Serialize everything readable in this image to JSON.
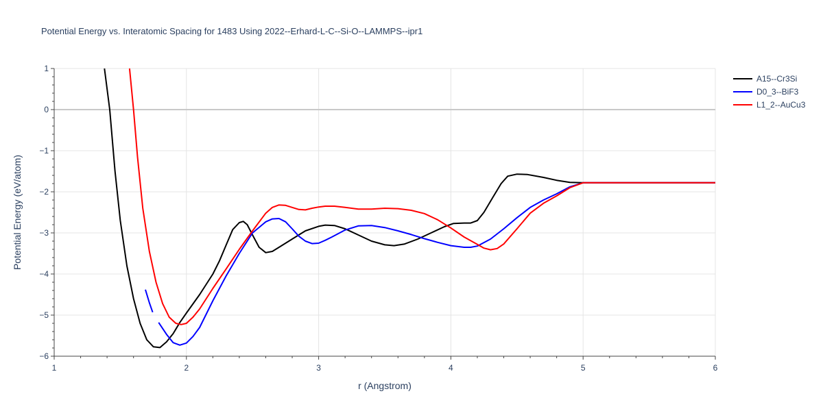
{
  "chart_data": {
    "type": "line",
    "title": "Potential Energy vs. Interatomic Spacing for 1483 Using 2022--Erhard-L-C--Si-O--LAMMPS--ipr1",
    "xlabel": "r (Angstrom)",
    "ylabel": "Potential Energy (eV/atom)",
    "xlim": [
      1,
      6
    ],
    "ylim": [
      -6,
      1
    ],
    "xticks": [
      1,
      2,
      3,
      4,
      5,
      6
    ],
    "yticks": [
      -6,
      -5,
      -4,
      -3,
      -2,
      -1,
      0,
      1
    ],
    "ytick_labels": [
      "−6",
      "−5",
      "−4",
      "−3",
      "−2",
      "−1",
      "0",
      "1"
    ],
    "grid": true,
    "legend_position": "top-right",
    "series": [
      {
        "name": "A15--Cr3Si",
        "color": "#000000",
        "segments": [
          [
            [
              1.38,
              1.0
            ],
            [
              1.42,
              0.0
            ],
            [
              1.46,
              -1.5
            ],
            [
              1.5,
              -2.7
            ],
            [
              1.55,
              -3.8
            ],
            [
              1.6,
              -4.6
            ],
            [
              1.65,
              -5.2
            ],
            [
              1.7,
              -5.6
            ],
            [
              1.75,
              -5.77
            ],
            [
              1.8,
              -5.79
            ],
            [
              1.85,
              -5.65
            ],
            [
              1.9,
              -5.45
            ],
            [
              1.95,
              -5.18
            ],
            [
              2.0,
              -4.95
            ],
            [
              2.1,
              -4.5
            ],
            [
              2.2,
              -4.0
            ],
            [
              2.25,
              -3.68
            ],
            [
              2.3,
              -3.3
            ],
            [
              2.35,
              -2.92
            ],
            [
              2.4,
              -2.75
            ],
            [
              2.43,
              -2.72
            ],
            [
              2.46,
              -2.8
            ],
            [
              2.5,
              -3.05
            ],
            [
              2.55,
              -3.35
            ],
            [
              2.6,
              -3.48
            ],
            [
              2.65,
              -3.45
            ],
            [
              2.7,
              -3.35
            ],
            [
              2.8,
              -3.15
            ],
            [
              2.9,
              -2.95
            ],
            [
              3.0,
              -2.84
            ],
            [
              3.05,
              -2.81
            ],
            [
              3.12,
              -2.82
            ],
            [
              3.2,
              -2.9
            ],
            [
              3.3,
              -3.05
            ],
            [
              3.4,
              -3.2
            ],
            [
              3.5,
              -3.29
            ],
            [
              3.57,
              -3.31
            ],
            [
              3.65,
              -3.27
            ],
            [
              3.75,
              -3.15
            ],
            [
              3.85,
              -3.0
            ],
            [
              3.95,
              -2.85
            ],
            [
              4.02,
              -2.77
            ],
            [
              4.1,
              -2.76
            ],
            [
              4.15,
              -2.76
            ],
            [
              4.2,
              -2.7
            ],
            [
              4.25,
              -2.5
            ],
            [
              4.32,
              -2.12
            ],
            [
              4.38,
              -1.8
            ],
            [
              4.43,
              -1.62
            ],
            [
              4.5,
              -1.57
            ],
            [
              4.58,
              -1.58
            ],
            [
              4.7,
              -1.65
            ],
            [
              4.8,
              -1.72
            ],
            [
              4.9,
              -1.77
            ],
            [
              5.0,
              -1.78
            ],
            [
              6.0,
              -1.78
            ]
          ]
        ]
      },
      {
        "name": "D0_3--BiF3",
        "color": "#0000ff",
        "segments": [
          [
            [
              1.69,
              -4.38
            ],
            [
              1.72,
              -4.7
            ],
            [
              1.745,
              -4.93
            ]
          ],
          [
            [
              1.79,
              -5.18
            ],
            [
              1.85,
              -5.47
            ],
            [
              1.9,
              -5.67
            ],
            [
              1.95,
              -5.73
            ],
            [
              2.0,
              -5.68
            ],
            [
              2.05,
              -5.52
            ],
            [
              2.1,
              -5.3
            ],
            [
              2.2,
              -4.65
            ],
            [
              2.3,
              -4.05
            ],
            [
              2.4,
              -3.5
            ],
            [
              2.5,
              -3.0
            ],
            [
              2.6,
              -2.73
            ],
            [
              2.65,
              -2.66
            ],
            [
              2.7,
              -2.65
            ],
            [
              2.75,
              -2.73
            ],
            [
              2.8,
              -2.9
            ],
            [
              2.85,
              -3.08
            ],
            [
              2.9,
              -3.2
            ],
            [
              2.95,
              -3.26
            ],
            [
              3.0,
              -3.25
            ],
            [
              3.05,
              -3.18
            ],
            [
              3.1,
              -3.1
            ],
            [
              3.2,
              -2.93
            ],
            [
              3.3,
              -2.83
            ],
            [
              3.4,
              -2.82
            ],
            [
              3.5,
              -2.87
            ],
            [
              3.6,
              -2.95
            ],
            [
              3.7,
              -3.04
            ],
            [
              3.8,
              -3.14
            ],
            [
              3.9,
              -3.23
            ],
            [
              4.0,
              -3.31
            ],
            [
              4.1,
              -3.35
            ],
            [
              4.15,
              -3.35
            ],
            [
              4.2,
              -3.32
            ],
            [
              4.3,
              -3.15
            ],
            [
              4.4,
              -2.9
            ],
            [
              4.5,
              -2.63
            ],
            [
              4.6,
              -2.38
            ],
            [
              4.7,
              -2.2
            ],
            [
              4.8,
              -2.05
            ],
            [
              4.9,
              -1.88
            ],
            [
              5.0,
              -1.78
            ],
            [
              6.0,
              -1.78
            ]
          ]
        ]
      },
      {
        "name": "L1_2--AuCu3",
        "color": "#ff0000",
        "segments": [
          [
            [
              1.57,
              1.0
            ],
            [
              1.6,
              0.0
            ],
            [
              1.63,
              -1.15
            ],
            [
              1.67,
              -2.4
            ],
            [
              1.72,
              -3.45
            ],
            [
              1.77,
              -4.2
            ],
            [
              1.82,
              -4.72
            ],
            [
              1.87,
              -5.05
            ],
            [
              1.92,
              -5.2
            ],
            [
              1.96,
              -5.23
            ],
            [
              2.0,
              -5.2
            ],
            [
              2.05,
              -5.05
            ],
            [
              2.1,
              -4.85
            ],
            [
              2.2,
              -4.35
            ],
            [
              2.3,
              -3.88
            ],
            [
              2.4,
              -3.4
            ],
            [
              2.5,
              -2.95
            ],
            [
              2.6,
              -2.52
            ],
            [
              2.65,
              -2.38
            ],
            [
              2.7,
              -2.32
            ],
            [
              2.75,
              -2.33
            ],
            [
              2.8,
              -2.38
            ],
            [
              2.85,
              -2.43
            ],
            [
              2.9,
              -2.44
            ],
            [
              2.95,
              -2.4
            ],
            [
              3.0,
              -2.37
            ],
            [
              3.05,
              -2.35
            ],
            [
              3.12,
              -2.35
            ],
            [
              3.2,
              -2.38
            ],
            [
              3.3,
              -2.42
            ],
            [
              3.4,
              -2.42
            ],
            [
              3.5,
              -2.4
            ],
            [
              3.6,
              -2.41
            ],
            [
              3.7,
              -2.45
            ],
            [
              3.8,
              -2.53
            ],
            [
              3.9,
              -2.68
            ],
            [
              4.0,
              -2.88
            ],
            [
              4.1,
              -3.1
            ],
            [
              4.2,
              -3.28
            ],
            [
              4.25,
              -3.37
            ],
            [
              4.3,
              -3.41
            ],
            [
              4.35,
              -3.38
            ],
            [
              4.4,
              -3.27
            ],
            [
              4.5,
              -2.9
            ],
            [
              4.6,
              -2.52
            ],
            [
              4.7,
              -2.28
            ],
            [
              4.8,
              -2.1
            ],
            [
              4.9,
              -1.9
            ],
            [
              5.0,
              -1.78
            ],
            [
              6.0,
              -1.78
            ]
          ]
        ]
      }
    ]
  }
}
